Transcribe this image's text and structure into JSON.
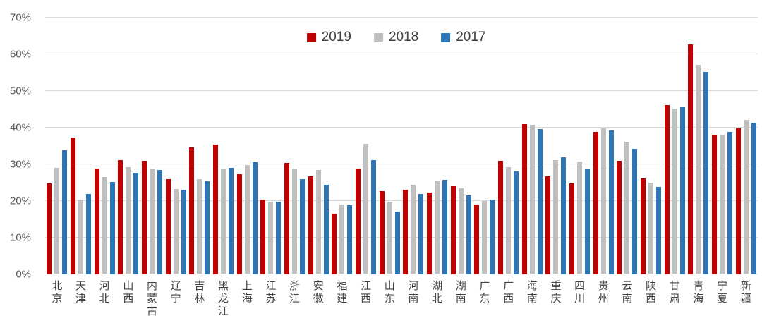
{
  "chart_data": {
    "type": "bar",
    "title": "",
    "xlabel": "",
    "ylabel": "",
    "ylim": [
      0,
      70
    ],
    "ytick_step": 10,
    "ytick_labels": [
      "0%",
      "10%",
      "20%",
      "30%",
      "40%",
      "50%",
      "60%",
      "70%"
    ],
    "grid": true,
    "legend_position": "top-center",
    "categories": [
      "北京",
      "天津",
      "河北",
      "山西",
      "内蒙古",
      "辽宁",
      "吉林",
      "黑龙江",
      "上海",
      "江苏",
      "浙江",
      "安徽",
      "福建",
      "江西",
      "山东",
      "河南",
      "湖北",
      "湖南",
      "广东",
      "广西",
      "海南",
      "重庆",
      "四川",
      "贵州",
      "云南",
      "陕西",
      "甘肃",
      "青海",
      "宁夏",
      "新疆"
    ],
    "series": [
      {
        "name": "2019",
        "color": "#c00000",
        "values": [
          24.8,
          37.4,
          28.8,
          31.1,
          31.0,
          26.0,
          34.7,
          35.3,
          27.4,
          20.3,
          30.4,
          26.8,
          16.6,
          28.8,
          22.7,
          23.0,
          22.4,
          24.1,
          19.0,
          31.0,
          41.0,
          26.7,
          24.9,
          38.8,
          30.9,
          26.1,
          46.1,
          62.6,
          38.1,
          39.9
        ]
      },
      {
        "name": "2018",
        "color": "#bfbfbf",
        "values": [
          29.0,
          20.3,
          26.6,
          29.3,
          28.9,
          23.3,
          25.9,
          28.6,
          29.9,
          19.8,
          28.9,
          28.4,
          19.0,
          35.6,
          19.9,
          24.5,
          25.3,
          23.5,
          20.0,
          29.3,
          40.7,
          31.2,
          30.8,
          39.8,
          36.2,
          25.0,
          45.2,
          57.2,
          38.0,
          42.2
        ]
      },
      {
        "name": "2017",
        "color": "#2e75b6",
        "values": [
          33.9,
          21.9,
          25.1,
          27.7,
          28.5,
          23.1,
          25.3,
          29.0,
          30.6,
          19.9,
          25.9,
          24.4,
          18.8,
          31.2,
          17.1,
          22.0,
          25.7,
          21.6,
          20.4,
          28.1,
          39.7,
          32.0,
          28.6,
          39.3,
          34.2,
          23.9,
          45.6,
          55.2,
          38.8,
          41.3
        ]
      }
    ]
  },
  "colors": {
    "gridline": "#d9d9d9",
    "axis_text": "#595959",
    "label_text": "#404040",
    "background": "#ffffff"
  }
}
